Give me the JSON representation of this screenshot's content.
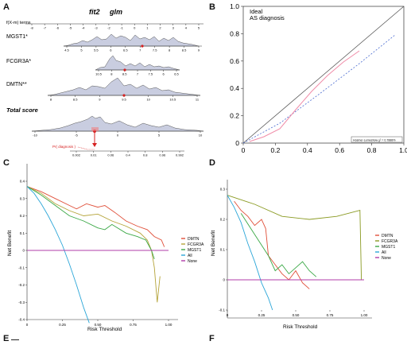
{
  "panels": {
    "A": "A",
    "B": "B",
    "C": "C",
    "D": "D",
    "E": "E",
    "F": "F"
  },
  "nomogram": {
    "model_label": "fit2",
    "model_name": "glm",
    "top_axis_label": "f(X-m) terms",
    "top_ticks": [
      "-8",
      "-7",
      "-6",
      "-5",
      "-4",
      "-3",
      "-2",
      "-1",
      "0",
      "1",
      "2",
      "3",
      "4",
      "5"
    ],
    "rows": [
      {
        "label": "MGST1*",
        "ticks": [
          "4.5",
          "5",
          "5.5",
          "6",
          "6.5",
          "7",
          "7.5",
          "8",
          "8.5",
          "9"
        ]
      },
      {
        "label": "FCGR3A*",
        "ticks": [
          "10.5",
          "8",
          "8.5",
          "7",
          "7.5",
          "6",
          "6.5"
        ]
      },
      {
        "label": "DMTN**",
        "ticks": [
          "8",
          "8.5",
          "9",
          "9.5",
          "10",
          "10.5",
          "11"
        ]
      },
      {
        "label": "Total score",
        "ticks": [
          "-10",
          "-5",
          "0",
          "5",
          "10"
        ]
      }
    ],
    "prob_label": "Pr( diagnosis )",
    "prob_ticks": [
      "0.002",
      "0.01",
      "0.06",
      "0.4",
      "0.8",
      "0.96",
      "0.992"
    ]
  },
  "calibration": {
    "legend_ideal": "Ideal",
    "legend_series": "AS diagnosis",
    "note": "Hosmer-Lemeshow χ² = 0.7888%",
    "x_ticks": [
      "0",
      "0.2",
      "0.4",
      "0.6",
      "0.8",
      "1.0"
    ],
    "y_ticks": [
      "0",
      "0.2",
      "0.4",
      "0.6",
      "0.8",
      "1.0"
    ]
  },
  "chart_data": [
    {
      "type": "line",
      "panel": "C",
      "xlabel": "Risk Threshold",
      "ylabel": "Net Benefit",
      "xlim": [
        0,
        1.0
      ],
      "ylim": [
        -0.4,
        0.4
      ],
      "x_ticks": [
        "0",
        "0.25",
        "0.50",
        "0.75",
        "1.00"
      ],
      "y_ticks": [
        "0.4",
        "0.3",
        "0.2",
        "0.1",
        "0",
        "-0.1",
        "-0.2",
        "-0.3",
        "-0.4"
      ],
      "series": [
        {
          "name": "DMTN",
          "color": "#e0503a",
          "x": [
            0,
            0.1,
            0.2,
            0.3,
            0.35,
            0.42,
            0.5,
            0.55,
            0.62,
            0.7,
            0.78,
            0.85,
            0.9,
            0.95,
            0.97
          ],
          "y": [
            0.37,
            0.34,
            0.3,
            0.26,
            0.24,
            0.27,
            0.25,
            0.26,
            0.22,
            0.17,
            0.14,
            0.12,
            0.08,
            0.06,
            0.02
          ]
        },
        {
          "name": "FCGR3A",
          "color": "#b5a43a",
          "x": [
            0,
            0.1,
            0.2,
            0.3,
            0.4,
            0.5,
            0.6,
            0.7,
            0.8,
            0.85,
            0.88,
            0.9,
            0.92,
            0.94
          ],
          "y": [
            0.37,
            0.33,
            0.27,
            0.23,
            0.2,
            0.21,
            0.17,
            0.14,
            0.1,
            0.06,
            0.0,
            -0.1,
            -0.3,
            -0.15
          ]
        },
        {
          "name": "MGST1",
          "color": "#3aa845",
          "x": [
            0,
            0.1,
            0.2,
            0.3,
            0.4,
            0.5,
            0.55,
            0.6,
            0.7,
            0.78,
            0.84,
            0.88,
            0.9
          ],
          "y": [
            0.37,
            0.32,
            0.26,
            0.2,
            0.17,
            0.13,
            0.12,
            0.15,
            0.1,
            0.08,
            0.06,
            0.0,
            -0.05
          ]
        },
        {
          "name": "All",
          "color": "#2ba6d8",
          "x": [
            0,
            0.05,
            0.1,
            0.15,
            0.2,
            0.25,
            0.3,
            0.35,
            0.4,
            0.44
          ],
          "y": [
            0.37,
            0.33,
            0.27,
            0.2,
            0.12,
            0.03,
            -0.08,
            -0.2,
            -0.33,
            -0.42
          ]
        },
        {
          "name": "None",
          "color": "#b13ca8",
          "x": [
            0,
            1.0
          ],
          "y": [
            0,
            0
          ]
        }
      ]
    },
    {
      "type": "line",
      "panel": "D",
      "xlabel": "Risk Threshold",
      "ylabel": "Net Benefit",
      "xlim": [
        0,
        1.0
      ],
      "ylim": [
        -0.1,
        0.3
      ],
      "x_ticks": [
        "0",
        "0.25",
        "0.50",
        "0.75",
        "1.00"
      ],
      "y_ticks": [
        "0.3",
        "0.2",
        "0.1",
        "0",
        "-0.1"
      ],
      "series": [
        {
          "name": "DMTN",
          "color": "#e0503a",
          "x": [
            0.05,
            0.1,
            0.15,
            0.2,
            0.25,
            0.28,
            0.3,
            0.35,
            0.4,
            0.45,
            0.5,
            0.55,
            0.6
          ],
          "y": [
            0.26,
            0.23,
            0.21,
            0.18,
            0.2,
            0.17,
            0.08,
            0.05,
            0.02,
            0.0,
            0.03,
            -0.01,
            -0.03
          ]
        },
        {
          "name": "FCGR3A",
          "color": "#8a9a22",
          "x": [
            0,
            0.2,
            0.4,
            0.6,
            0.8,
            0.97,
            0.98
          ],
          "y": [
            0.28,
            0.25,
            0.21,
            0.2,
            0.21,
            0.23,
            0.0
          ]
        },
        {
          "name": "MGST1",
          "color": "#3aa845",
          "x": [
            0.1,
            0.2,
            0.3,
            0.35,
            0.4,
            0.45,
            0.5,
            0.55,
            0.6,
            0.65
          ],
          "y": [
            0.22,
            0.15,
            0.08,
            0.03,
            0.05,
            0.02,
            0.04,
            0.06,
            0.03,
            0.01
          ]
        },
        {
          "name": "All",
          "color": "#2ba6d8",
          "x": [
            0,
            0.05,
            0.1,
            0.15,
            0.2,
            0.25,
            0.3,
            0.33
          ],
          "y": [
            0.28,
            0.24,
            0.19,
            0.12,
            0.06,
            -0.01,
            -0.06,
            -0.1
          ]
        },
        {
          "name": "None",
          "color": "#b13ca8",
          "x": [
            0,
            1.0
          ],
          "y": [
            0,
            0
          ]
        }
      ]
    }
  ]
}
